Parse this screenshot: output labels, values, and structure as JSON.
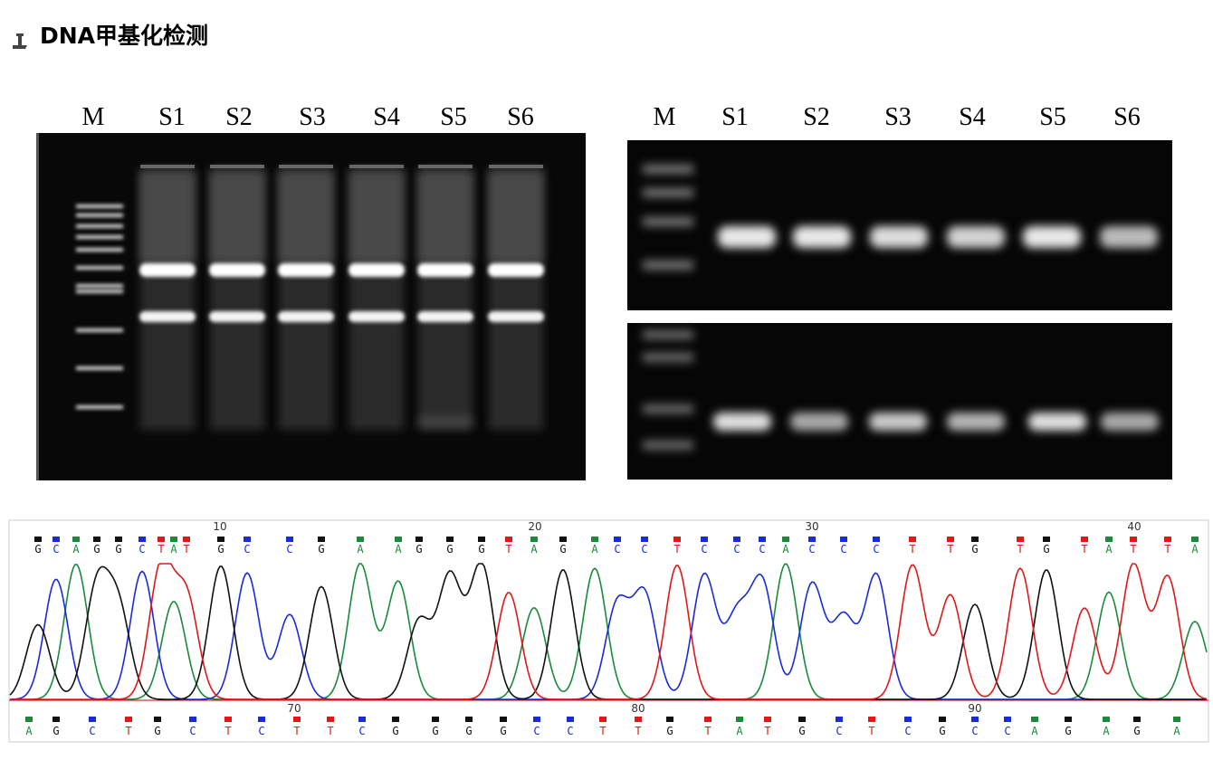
{
  "header": {
    "title": "DNA甲基化检测"
  },
  "gel_left": {
    "lanes": [
      "M",
      "S1",
      "S2",
      "S3",
      "S4",
      "S5",
      "S6"
    ]
  },
  "gel_right": {
    "lanes": [
      "M",
      "S1",
      "S2",
      "S3",
      "S4",
      "S5",
      "S6"
    ]
  },
  "chromatogram": {
    "top_positions": [
      "10",
      "20",
      "30",
      "40"
    ],
    "top_bases": [
      "G",
      "C",
      "A",
      "G",
      "G",
      "C",
      "T",
      "A",
      "T",
      "G",
      "C",
      "C",
      "G",
      "A",
      "A",
      "G",
      "G",
      "G",
      "T",
      "A",
      "G",
      "A",
      "C",
      "C",
      "T",
      "C",
      "C",
      "C",
      "A",
      "C",
      "C",
      "C",
      "T",
      "T",
      "G",
      "T",
      "G",
      "T",
      "A",
      "T",
      "T",
      "A"
    ],
    "bottom_positions": [
      "70",
      "80",
      "90"
    ],
    "bottom_bases": [
      "A",
      "G",
      "C",
      "T",
      "G",
      "C",
      "T",
      "C",
      "T",
      "T",
      "C",
      "G",
      "G",
      "G",
      "G",
      "C",
      "C",
      "T",
      "T",
      "G",
      "T",
      "A",
      "T",
      "G",
      "C",
      "T",
      "C",
      "G",
      "C",
      "C",
      "A",
      "G",
      "A",
      "G",
      "A"
    ]
  }
}
